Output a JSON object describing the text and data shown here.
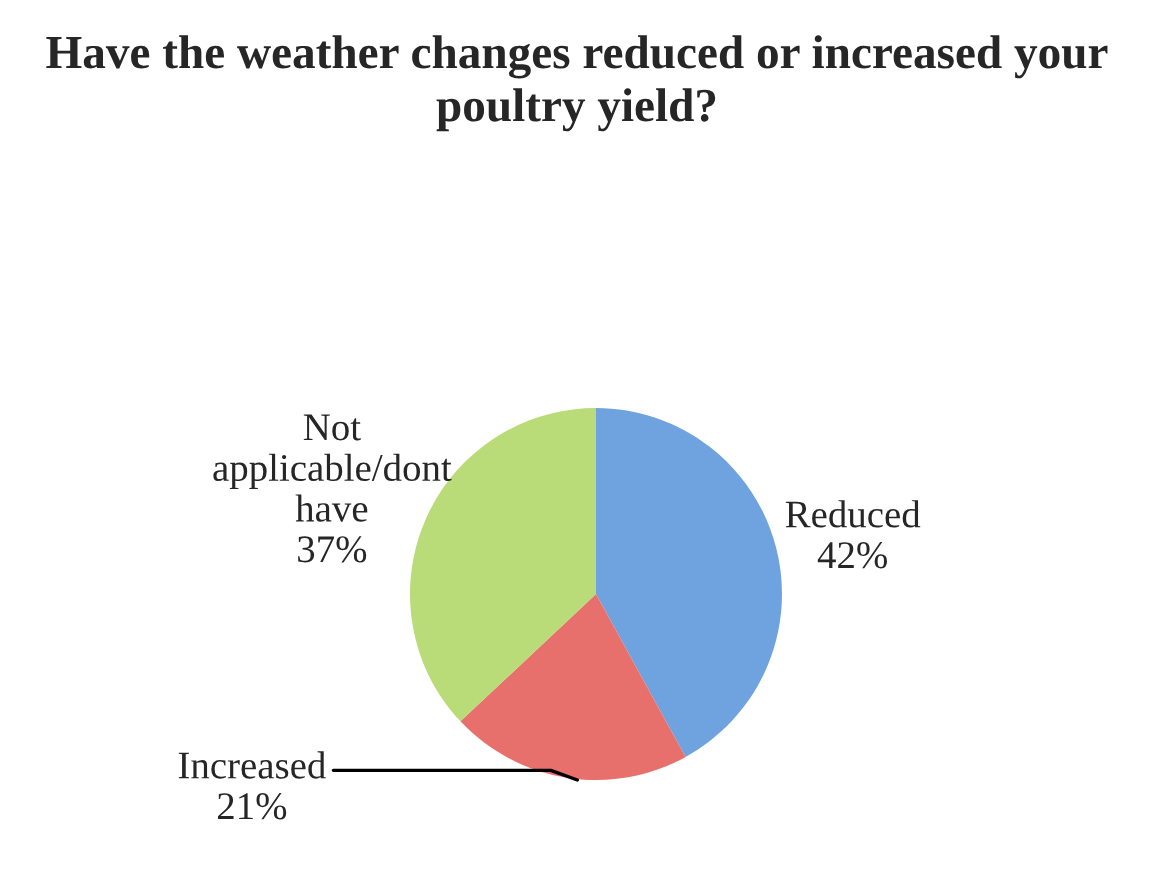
{
  "chart_data": {
    "type": "pie",
    "title": "Have the weather changes reduced or increased your poultry yield?",
    "categories": [
      "Reduced",
      "Increased",
      "Not applicable/dont have"
    ],
    "values": [
      42,
      21,
      37
    ],
    "colors": [
      "#6fa3e0",
      "#e8706c",
      "#b9db78"
    ],
    "value_labels": [
      "42%",
      "21%",
      "37%"
    ],
    "legend": false
  }
}
